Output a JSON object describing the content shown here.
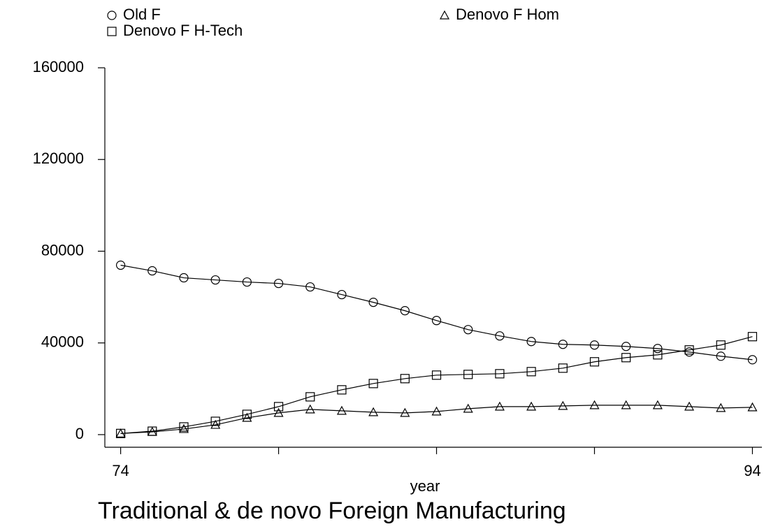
{
  "chart_data": {
    "type": "line",
    "title": "Traditional & de novo Foreign Manufacturing",
    "x_label": "year",
    "x": [
      74,
      75,
      76,
      77,
      78,
      79,
      80,
      81,
      82,
      83,
      84,
      85,
      86,
      87,
      88,
      89,
      90,
      91,
      92,
      93,
      94
    ],
    "xlim": [
      73.5,
      94.3
    ],
    "xticks": [
      74,
      94
    ],
    "xminor_ticks": [
      79,
      84,
      89
    ],
    "ylim": [
      -5500,
      160000
    ],
    "yticks": [
      0,
      40000,
      80000,
      120000,
      160000
    ],
    "series": [
      {
        "name": "Old F",
        "color": "#000000",
        "marker": "circle",
        "values": [
          73900,
          71450,
          68400,
          67480,
          66560,
          65950,
          64430,
          61070,
          57710,
          54050,
          49770,
          45800,
          43050,
          40610,
          39390,
          39080,
          38470,
          37560,
          36030,
          34200,
          32670
        ]
      },
      {
        "name": "Denovo F Hom",
        "color": "#000000",
        "marker": "triangle",
        "values": [
          500,
          1200,
          2440,
          4270,
          7330,
          9470,
          11000,
          10380,
          9770,
          9470,
          10080,
          11300,
          12210,
          12210,
          12520,
          12820,
          12820,
          12820,
          12210,
          11600,
          11900
        ]
      },
      {
        "name": "Denovo F H-Tech",
        "color": "#000000",
        "marker": "square",
        "values": [
          500,
          1500,
          3360,
          5800,
          8850,
          12210,
          16490,
          19540,
          22290,
          24430,
          25950,
          26260,
          26560,
          27480,
          29000,
          31760,
          33590,
          34810,
          36950,
          39080,
          42750
        ]
      }
    ]
  }
}
